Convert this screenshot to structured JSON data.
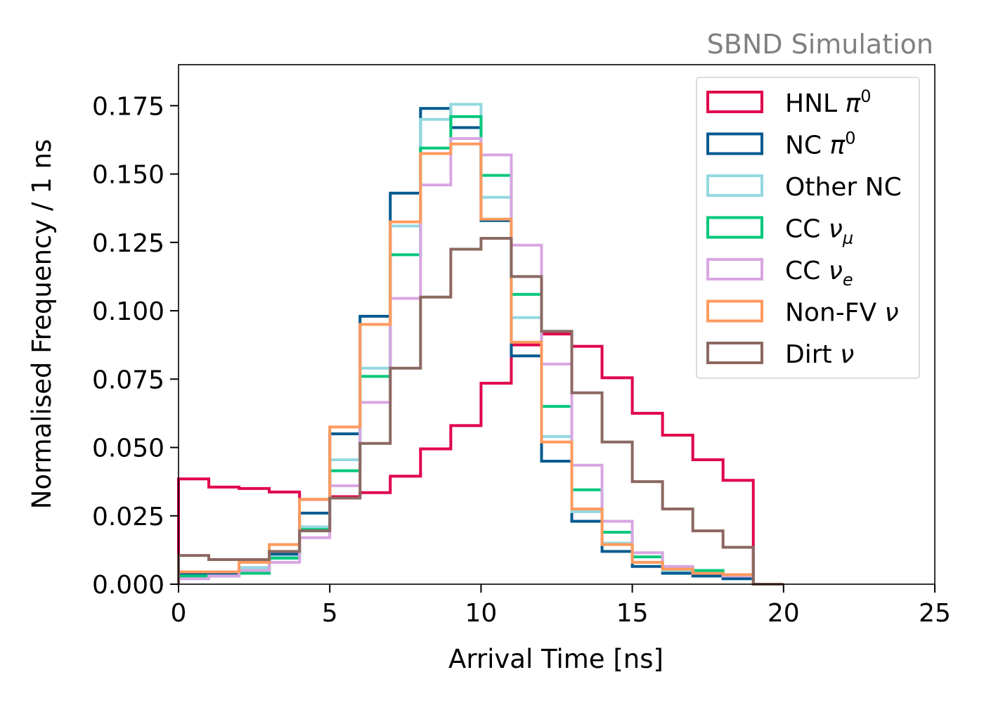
{
  "chart_data": {
    "type": "step histogram",
    "annotation": "SBND Simulation",
    "annotation_color": "#808080",
    "xlabel": "Arrival Time [ns]",
    "ylabel": "Normalised Frequency / 1 ns",
    "xlim": [
      0,
      25
    ],
    "ylim": [
      0,
      0.19
    ],
    "x_ticks": [
      0,
      5,
      10,
      15,
      20,
      25
    ],
    "x_tick_labels": [
      "0",
      "5",
      "10",
      "15",
      "20",
      "25"
    ],
    "y_ticks": [
      0,
      0.025,
      0.05,
      0.075,
      0.1,
      0.125,
      0.15,
      0.175
    ],
    "y_tick_labels": [
      "0.000",
      "0.025",
      "0.050",
      "0.075",
      "0.100",
      "0.125",
      "0.150",
      "0.175"
    ],
    "bin_edges": [
      0,
      1,
      2,
      3,
      4,
      5,
      6,
      7,
      8,
      9,
      10,
      11,
      12,
      13,
      14,
      15,
      16,
      17,
      18,
      19,
      20
    ],
    "legend_position": "upper right",
    "series": [
      {
        "name": "HNL π⁰",
        "label_main": "HNL ",
        "label_greek": "π",
        "label_sup": "0",
        "label_sub": "",
        "color": "#e0004b",
        "values": [
          0.0385,
          0.0355,
          0.035,
          0.0337,
          0.031,
          0.032,
          0.0335,
          0.0395,
          0.0495,
          0.058,
          0.0735,
          0.0875,
          0.0915,
          0.087,
          0.0755,
          0.0625,
          0.0545,
          0.0455,
          0.038,
          0.0
        ]
      },
      {
        "name": "NC π⁰",
        "label_main": "NC ",
        "label_greek": "π",
        "label_sup": "0",
        "label_sub": "",
        "color": "#005a8f",
        "values": [
          0.004,
          0.0035,
          0.006,
          0.011,
          0.026,
          0.055,
          0.098,
          0.143,
          0.174,
          0.167,
          0.133,
          0.0835,
          0.045,
          0.023,
          0.012,
          0.0065,
          0.004,
          0.003,
          0.002,
          0.0
        ]
      },
      {
        "name": "Other NC",
        "label_main": "Other NC",
        "label_greek": "",
        "label_sup": "",
        "label_sub": "",
        "color": "#94d8e0",
        "values": [
          0.003,
          0.003,
          0.006,
          0.01,
          0.021,
          0.0455,
          0.079,
          0.131,
          0.17,
          0.1755,
          0.1415,
          0.0975,
          0.054,
          0.0265,
          0.015,
          0.008,
          0.005,
          0.004,
          0.003,
          0.0
        ]
      },
      {
        "name": "CC ν_μ",
        "label_main": "CC ",
        "label_greek": "ν",
        "label_sup": "",
        "label_sub": "μ",
        "color": "#00c87a",
        "values": [
          0.003,
          0.003,
          0.004,
          0.0095,
          0.02,
          0.0415,
          0.076,
          0.1205,
          0.1595,
          0.171,
          0.1495,
          0.106,
          0.065,
          0.0345,
          0.019,
          0.01,
          0.006,
          0.005,
          0.003,
          0.0
        ]
      },
      {
        "name": "CC ν_e",
        "label_main": "CC ",
        "label_greek": "ν",
        "label_sup": "",
        "label_sub": "e",
        "color": "#d8a6e2",
        "values": [
          0.002,
          0.003,
          0.005,
          0.008,
          0.017,
          0.036,
          0.0665,
          0.1045,
          0.146,
          0.163,
          0.157,
          0.124,
          0.0805,
          0.0435,
          0.023,
          0.0115,
          0.0065,
          0.004,
          0.003,
          0.0
        ]
      },
      {
        "name": "Non-FV ν",
        "label_main": "Non-FV ",
        "label_greek": "ν",
        "label_sup": "",
        "label_sub": "",
        "color": "#ff9a5e",
        "values": [
          0.0045,
          0.0045,
          0.008,
          0.0145,
          0.031,
          0.0575,
          0.095,
          0.1325,
          0.1575,
          0.161,
          0.1335,
          0.0885,
          0.052,
          0.0275,
          0.0145,
          0.008,
          0.0055,
          0.004,
          0.0035,
          0.0
        ]
      },
      {
        "name": "Dirt ν",
        "label_main": "Dirt ",
        "label_greek": "ν",
        "label_sup": "",
        "label_sub": "",
        "color": "#8c6862",
        "values": [
          0.0105,
          0.009,
          0.009,
          0.012,
          0.0195,
          0.0315,
          0.0515,
          0.079,
          0.105,
          0.1225,
          0.1265,
          0.1125,
          0.0925,
          0.07,
          0.052,
          0.0375,
          0.0275,
          0.0195,
          0.0135,
          0.0
        ]
      }
    ]
  }
}
